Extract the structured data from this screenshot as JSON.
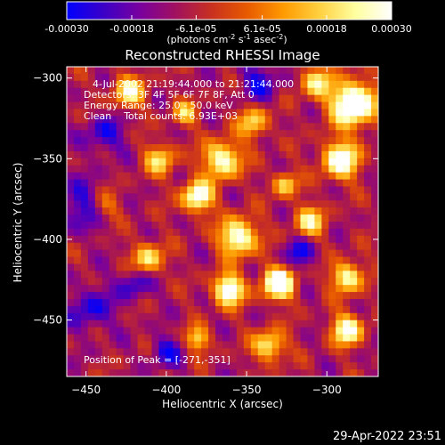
{
  "colorbar": {
    "ticks": [
      "-0.00030",
      "-0.00018",
      "-6.1e-05",
      "6.1e-05",
      "0.00018",
      "0.00030"
    ],
    "tick_values": [
      -0.0003,
      -0.00018,
      -6.1e-05,
      6.1e-05,
      0.00018,
      0.0003
    ],
    "range": [
      -0.0003,
      0.0003
    ],
    "units_main": "(photons cm",
    "units_exp1": "-2",
    "units_mid": " s",
    "units_exp2": "-1",
    "units_end": " asec",
    "units_exp3": "-2",
    "units_close": ")",
    "colors": [
      "#0000ff",
      "#3a00c8",
      "#7800a0",
      "#a01060",
      "#c83020",
      "#e85a00",
      "#ff9a00",
      "#ffd040",
      "#ffffa0",
      "#ffffff"
    ]
  },
  "chart_data": {
    "type": "heatmap",
    "title": "Reconstructed RHESSI Image",
    "xlabel": "Heliocentric X (arcsec)",
    "ylabel": "Heliocentric Y (arcsec)",
    "xlim": [
      -462,
      -268
    ],
    "ylim": [
      -485,
      -293
    ],
    "x_ticks": [
      -450,
      -400,
      -350,
      -300
    ],
    "y_ticks": [
      -300,
      -350,
      -400,
      -450
    ],
    "x_tick_labels": [
      "−450",
      "−400",
      "−350",
      "−300"
    ],
    "y_tick_labels": [
      "−300",
      "−350",
      "−400",
      "−450"
    ],
    "grid": false,
    "info": {
      "line1": "4-Jul-2002 21:19:44.000 to 21:21:44.000",
      "line2": "Detectors: 3F 4F 5F 6F 7F 8F, Att 0",
      "line3": "Energy Range: 25.0 - 50.0 keV",
      "line4": "Clean    Total counts: 6.93E+03"
    },
    "peak_label": "Position of Peak = [-271,-351]",
    "peak": [
      -271,
      -351
    ]
  },
  "timestamp": "29-Apr-2022 23:51"
}
